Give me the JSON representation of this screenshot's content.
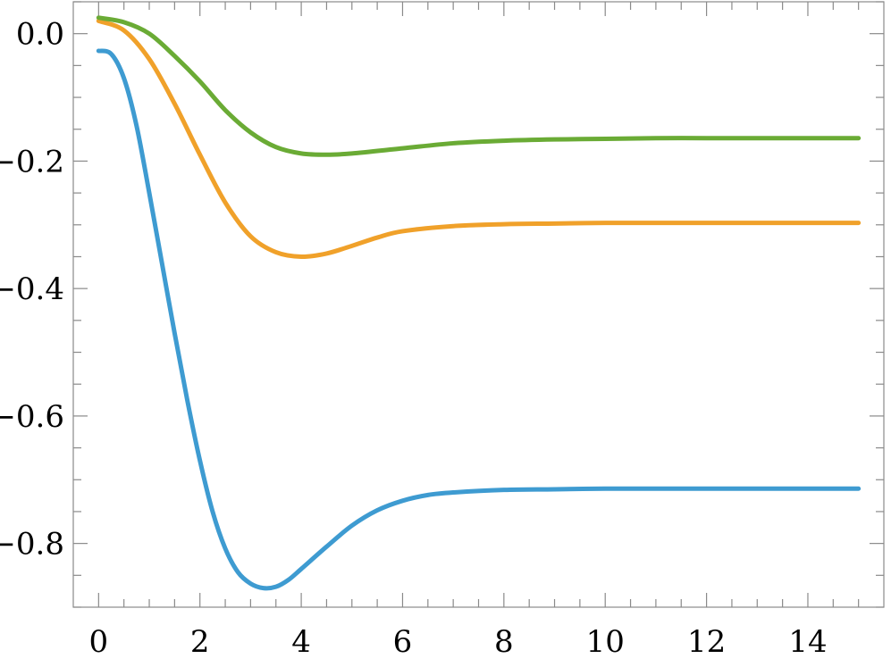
{
  "chart_data": {
    "type": "line",
    "title": "",
    "xlabel": "",
    "ylabel": "",
    "xlim": [
      -0.5,
      15.5
    ],
    "ylim": [
      -0.9,
      0.05
    ],
    "grid": false,
    "legend": "none",
    "x_ticks": [
      0,
      2,
      4,
      6,
      8,
      10,
      12,
      14
    ],
    "x_tick_labels": [
      "0",
      "2",
      "4",
      "6",
      "8",
      "10",
      "12",
      "14"
    ],
    "x_minor_step": 0.5,
    "y_ticks": [
      0.0,
      -0.2,
      -0.4,
      -0.6,
      -0.8
    ],
    "y_tick_labels": [
      "0.0",
      "−0.2",
      "−0.4",
      "−0.6",
      "−0.8"
    ],
    "y_minor_step": 0.05,
    "series": [
      {
        "color": "#f0a12a",
        "x": [
          0,
          0.5,
          1,
          1.5,
          2,
          2.5,
          3,
          3.5,
          4,
          4.5,
          5,
          5.5,
          6,
          7,
          8,
          9,
          10,
          11,
          12,
          13,
          14,
          15
        ],
        "y": [
          0.02,
          0.005,
          -0.04,
          -0.11,
          -0.19,
          -0.265,
          -0.318,
          -0.343,
          -0.35,
          -0.345,
          -0.333,
          -0.32,
          -0.31,
          -0.302,
          -0.299,
          -0.298,
          -0.297,
          -0.297,
          -0.297,
          -0.297,
          -0.297,
          -0.297
        ]
      },
      {
        "color": "#6aab35",
        "x": [
          0,
          0.5,
          1,
          1.5,
          2,
          2.5,
          3,
          3.5,
          4,
          4.5,
          5,
          6,
          7,
          8,
          9,
          10,
          11,
          12,
          13,
          14,
          15
        ],
        "y": [
          0.025,
          0.018,
          0.0,
          -0.035,
          -0.075,
          -0.12,
          -0.155,
          -0.178,
          -0.188,
          -0.19,
          -0.188,
          -0.18,
          -0.172,
          -0.168,
          -0.166,
          -0.165,
          -0.164,
          -0.164,
          -0.164,
          -0.164,
          -0.164
        ]
      },
      {
        "color": "#3e9bd1",
        "x": [
          0,
          0.25,
          0.5,
          0.75,
          1,
          1.25,
          1.5,
          1.75,
          2,
          2.25,
          2.5,
          2.75,
          3,
          3.25,
          3.5,
          3.75,
          4,
          4.5,
          5,
          5.5,
          6,
          6.5,
          7,
          8,
          9,
          10,
          11,
          12,
          13,
          14,
          15
        ],
        "y": [
          -0.027,
          -0.032,
          -0.07,
          -0.145,
          -0.25,
          -0.36,
          -0.47,
          -0.575,
          -0.67,
          -0.75,
          -0.808,
          -0.845,
          -0.863,
          -0.87,
          -0.868,
          -0.857,
          -0.84,
          -0.805,
          -0.772,
          -0.748,
          -0.733,
          -0.724,
          -0.72,
          -0.716,
          -0.715,
          -0.714,
          -0.714,
          -0.714,
          -0.714,
          -0.714,
          -0.714
        ]
      }
    ]
  }
}
